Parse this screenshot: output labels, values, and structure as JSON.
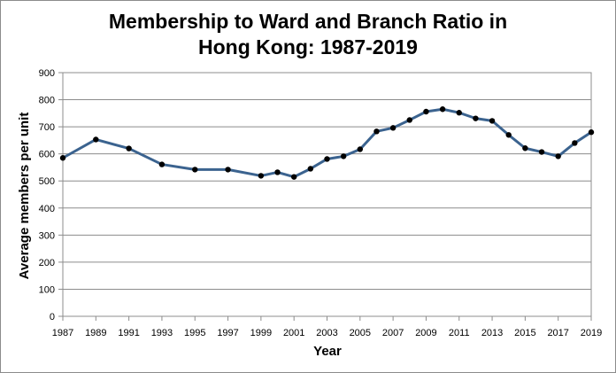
{
  "chart_data": {
    "type": "line",
    "title_line1": "Membership to Ward and Branch Ratio in",
    "title_line2": "Hong Kong: 1987-2019",
    "xlabel": "Year",
    "ylabel": "Average members per unit",
    "ylim": [
      0,
      900
    ],
    "yticks": [
      0,
      100,
      200,
      300,
      400,
      500,
      600,
      700,
      800,
      900
    ],
    "xlim": [
      1987,
      2019
    ],
    "xticks": [
      1987,
      1989,
      1991,
      1993,
      1995,
      1997,
      1999,
      2001,
      2003,
      2005,
      2007,
      2009,
      2011,
      2013,
      2015,
      2017,
      2019
    ],
    "grid": "horizontal",
    "line_color": "#3b638f",
    "marker_color": "#000000",
    "series": [
      {
        "x": [
          1987,
          1989,
          1991,
          1993,
          1995,
          1997,
          1999,
          2000,
          2001,
          2002,
          2003,
          2004,
          2005,
          2006,
          2007,
          2008,
          2009,
          2010,
          2011,
          2012,
          2013,
          2014,
          2015,
          2016,
          2017,
          2018,
          2019
        ],
        "values": [
          585,
          653,
          620,
          561,
          542,
          542,
          519,
          532,
          515,
          545,
          581,
          591,
          617,
          683,
          696,
          725,
          756,
          765,
          752,
          731,
          722,
          670,
          621,
          607,
          591,
          640,
          680
        ]
      }
    ]
  }
}
